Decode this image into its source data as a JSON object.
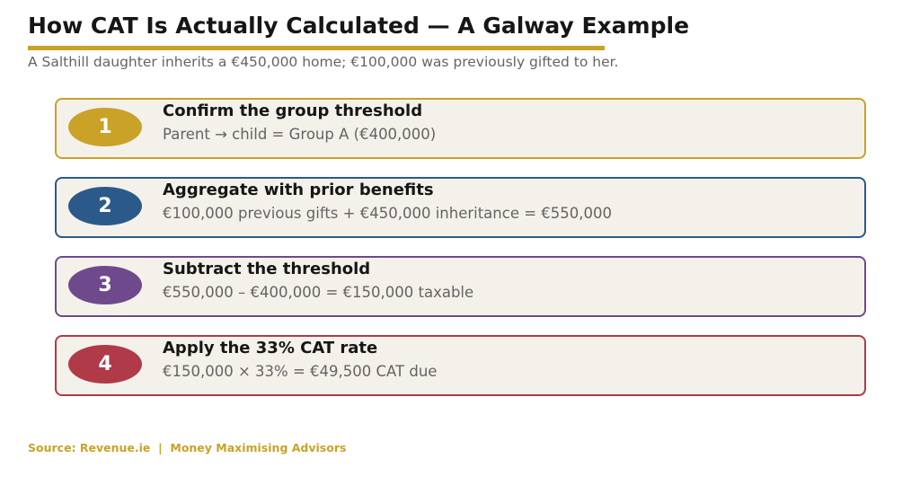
{
  "title": "How CAT Is Actually Calculated — A Galway Example",
  "subtitle": "A Salthill daughter inherits a €450,000 home; €100,000 was previously gifted to her.",
  "steps": [
    {
      "number": "1",
      "title": "Confirm the group threshold",
      "detail": "Parent → child = Group A (€400,000)",
      "color": "#C9A227"
    },
    {
      "number": "2",
      "title": "Aggregate with prior benefits",
      "detail": "€100,000 previous gifts + €450,000 inheritance = €550,000",
      "color": "#2B5A8A"
    },
    {
      "number": "3",
      "title": "Subtract the threshold",
      "detail": "€550,000 – €400,000 = €150,000 taxable",
      "color": "#6E4A8C"
    },
    {
      "number": "4",
      "title": "Apply the 33% CAT rate",
      "detail": "€150,000 × 33% = €49,500 CAT due",
      "color": "#B03A48"
    }
  ],
  "source": "Source: Revenue.ie  |  Money Maximising Advisors"
}
